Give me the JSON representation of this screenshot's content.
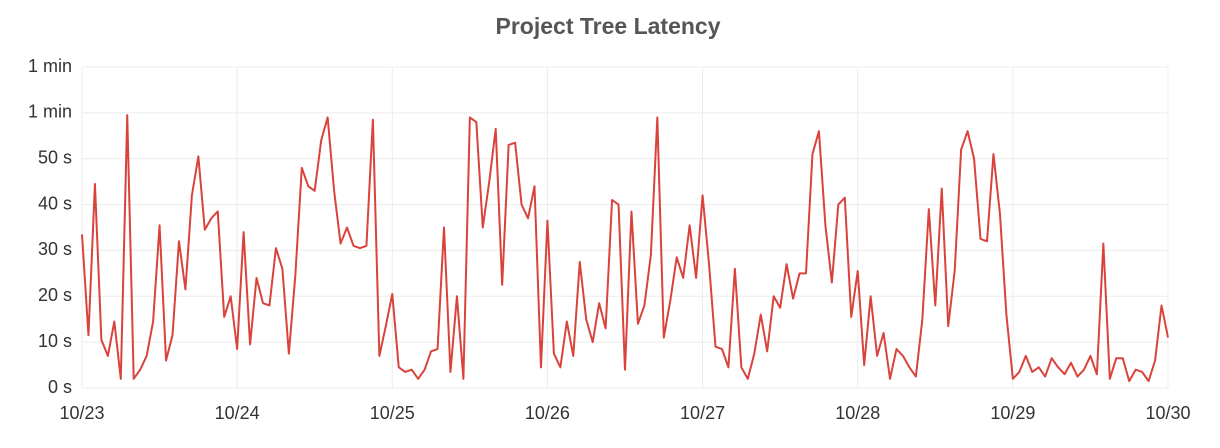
{
  "chart_data": {
    "type": "line",
    "title": "Project Tree Latency",
    "x": [
      0,
      1,
      2,
      3,
      4,
      5,
      6,
      7,
      8,
      9,
      10,
      11,
      12,
      13,
      14,
      15,
      16,
      17,
      18,
      19,
      20,
      21,
      22,
      23,
      24,
      25,
      26,
      27,
      28,
      29,
      30,
      31,
      32,
      33,
      34,
      35,
      36,
      37,
      38,
      39,
      40,
      41,
      42,
      43,
      44,
      45,
      46,
      47,
      48,
      49,
      50,
      51,
      52,
      53,
      54,
      55,
      56,
      57,
      58,
      59,
      60,
      61,
      62,
      63,
      64,
      65,
      66,
      67,
      68,
      69,
      70,
      71,
      72,
      73,
      74,
      75,
      76,
      77,
      78,
      79,
      80,
      81,
      82,
      83,
      84,
      85,
      86,
      87,
      88,
      89,
      90,
      91,
      92,
      93,
      94,
      95,
      96,
      97,
      98,
      99,
      100,
      101,
      102,
      103,
      104,
      105,
      106,
      107,
      108,
      109,
      110,
      111,
      112,
      113,
      114,
      115,
      116,
      117,
      118,
      119,
      120,
      121,
      122,
      123,
      124,
      125,
      126,
      127,
      128,
      129,
      130,
      131,
      132,
      133,
      134,
      135,
      136,
      137,
      138,
      139,
      140,
      141,
      142,
      143,
      144,
      145,
      146,
      147,
      148,
      149,
      150,
      151,
      152,
      153,
      154,
      155,
      156,
      157,
      158,
      159,
      160,
      161,
      162,
      163,
      164,
      165,
      166,
      167,
      168
    ],
    "values": [
      33.5,
      11.5,
      44.5,
      10.5,
      7,
      14.5,
      2,
      59.5,
      2,
      4,
      7,
      14.5,
      35.5,
      6,
      11.5,
      32,
      21.5,
      42,
      50.5,
      34.5,
      37,
      38.5,
      15.5,
      20,
      8.5,
      34,
      9.5,
      24,
      18.5,
      18,
      30.5,
      26,
      7.5,
      24.5,
      48,
      44,
      43,
      54,
      59,
      43,
      31.5,
      35,
      31,
      30.5,
      31,
      58.5,
      7,
      13.5,
      20.5,
      4.5,
      3.5,
      4,
      2,
      4,
      8,
      8.5,
      35,
      3.5,
      20,
      2,
      59,
      58,
      35,
      45,
      56.5,
      22.5,
      53,
      53.5,
      40,
      37,
      44,
      4.5,
      36.5,
      7.5,
      4.5,
      14.5,
      7,
      27.5,
      15,
      10,
      18.5,
      13,
      41,
      40,
      4,
      38.5,
      14,
      18,
      29,
      59,
      11,
      19,
      28.5,
      24,
      35.5,
      24,
      42,
      27,
      9,
      8.5,
      4.5,
      26,
      4.5,
      2,
      7.5,
      16,
      8,
      20,
      17.5,
      27,
      19.5,
      25,
      25,
      51,
      56,
      35.5,
      23,
      40,
      41.5,
      15.5,
      25.5,
      5,
      20,
      7,
      12,
      2,
      8.5,
      7,
      4.5,
      2.5,
      15,
      39,
      18,
      43.5,
      13.5,
      25.5,
      52,
      56,
      50,
      32.5,
      32,
      51,
      38,
      16,
      2,
      3.5,
      7,
      3.5,
      4.5,
      2.5,
      6.5,
      4.5,
      3,
      5.5,
      2.5,
      4,
      7,
      3,
      31.5,
      2,
      6.5,
      6.5,
      1.5,
      4,
      3.5,
      1.5,
      6,
      18,
      11
    ],
    "color": "#d9433b",
    "xlim": [
      0,
      168
    ],
    "xticks": [
      {
        "value": 0,
        "label": "10/23"
      },
      {
        "value": 24,
        "label": "10/24"
      },
      {
        "value": 48,
        "label": "10/25"
      },
      {
        "value": 72,
        "label": "10/26"
      },
      {
        "value": 96,
        "label": "10/27"
      },
      {
        "value": 120,
        "label": "10/28"
      },
      {
        "value": 144,
        "label": "10/29"
      },
      {
        "value": 168,
        "label": "10/30"
      }
    ],
    "ylim": [
      0,
      70
    ],
    "yticks": [
      {
        "value": 0,
        "label": "0 s"
      },
      {
        "value": 10,
        "label": "10 s"
      },
      {
        "value": 20,
        "label": "20 s"
      },
      {
        "value": 30,
        "label": "30 s"
      },
      {
        "value": 40,
        "label": "40 s"
      },
      {
        "value": 50,
        "label": "50 s"
      },
      {
        "value": 60,
        "label": "1 min"
      },
      {
        "value": 70,
        "label": "1 min"
      }
    ],
    "grid": true
  }
}
